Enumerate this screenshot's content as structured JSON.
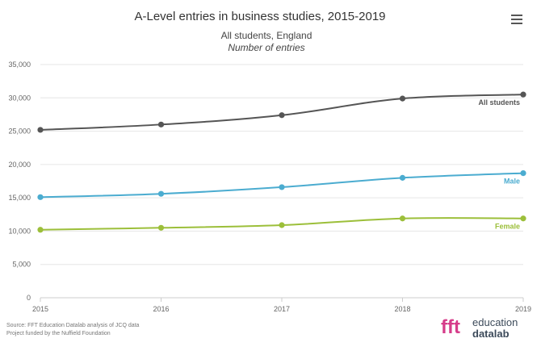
{
  "header": {
    "title": "A-Level entries in business studies, 2015-2019",
    "subtitle": "All students, England",
    "subtitle_italic": "Number of entries",
    "menu_icon": "hamburger-menu-icon"
  },
  "footer": {
    "source_line1": "Source: FFT Education Datalab analysis of JCQ data",
    "source_line2": "Project funded by the Nuffield Foundation",
    "logo_mark": "fft",
    "logo_word1": "education",
    "logo_word2": "datalab"
  },
  "chart_data": {
    "type": "line",
    "title": "A-Level entries in business studies, 2015-2019",
    "subtitle": "All students, England",
    "ylabel": "Number of entries",
    "x": [
      "2015",
      "2016",
      "2017",
      "2018",
      "2019"
    ],
    "ylim": [
      0,
      35000
    ],
    "yticks": [
      0,
      5000,
      10000,
      15000,
      20000,
      25000,
      30000,
      35000
    ],
    "ytick_labels": [
      "0",
      "5,000",
      "10,000",
      "15,000",
      "20,000",
      "25,000",
      "30,000",
      "35,000"
    ],
    "grid": true,
    "series": [
      {
        "name": "All students",
        "color": "#555555",
        "values": [
          25200,
          26000,
          27400,
          29900,
          30500
        ]
      },
      {
        "name": "Male",
        "color": "#4bacd0",
        "values": [
          15100,
          15600,
          16600,
          18000,
          18700
        ]
      },
      {
        "name": "Female",
        "color": "#9cbf3a",
        "values": [
          10200,
          10500,
          10900,
          11900,
          11900
        ]
      }
    ]
  }
}
